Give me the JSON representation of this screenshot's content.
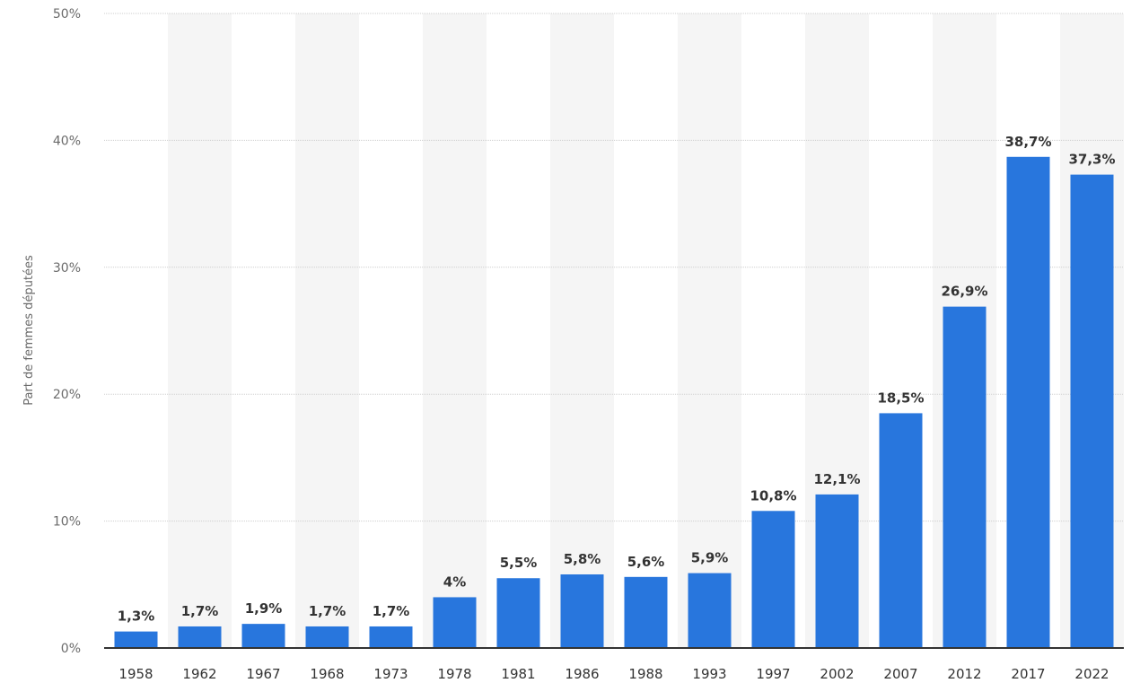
{
  "chart_data": {
    "type": "bar",
    "title": "",
    "xlabel": "",
    "ylabel": "Part de femmes députées",
    "ylim": [
      0,
      50
    ],
    "yticks": [
      0,
      10,
      20,
      30,
      40,
      50
    ],
    "ytick_labels": [
      "0%",
      "10%",
      "20%",
      "30%",
      "40%",
      "50%"
    ],
    "grid": true,
    "categories": [
      "1958",
      "1962",
      "1967",
      "1968",
      "1973",
      "1978",
      "1981",
      "1986",
      "1988",
      "1993",
      "1997",
      "2002",
      "2007",
      "2012",
      "2017",
      "2022"
    ],
    "values": [
      1.3,
      1.7,
      1.9,
      1.7,
      1.7,
      4,
      5.5,
      5.8,
      5.6,
      5.9,
      10.8,
      12.1,
      18.5,
      26.9,
      38.7,
      37.3
    ],
    "value_labels": [
      "1,3%",
      "1,7%",
      "1,9%",
      "1,7%",
      "1,7%",
      "4%",
      "5,5%",
      "5,8%",
      "5,6%",
      "5,9%",
      "10,8%",
      "12,1%",
      "18,5%",
      "26,9%",
      "38,7%",
      "37,3%"
    ],
    "bar_color": "#2876dd",
    "band_color": "#f5f5f5"
  }
}
